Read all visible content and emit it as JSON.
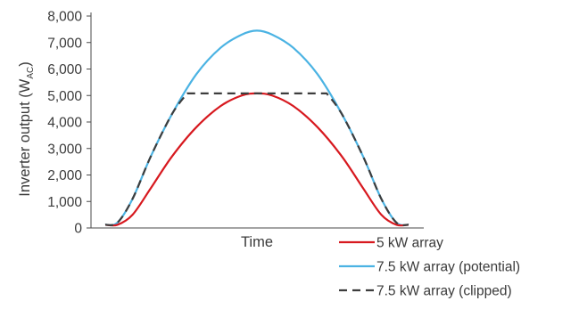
{
  "chart_data": {
    "type": "line",
    "title": "",
    "xlabel": "Time",
    "ylabel": "Inverter output (W",
    "ylabel_subscript": "AC",
    "ylabel_suffix": ")",
    "ylim": [
      0,
      8000
    ],
    "yticks": [
      "0",
      "1,000",
      "2,000",
      "3,000",
      "4,000",
      "5,000",
      "6,000",
      "7,000",
      "8,000"
    ],
    "grid": false,
    "legend_position": "bottom-right",
    "series": [
      {
        "name": "5 kW array",
        "color": "#d7191f",
        "style": "solid",
        "x": [
          0.0,
          0.04,
          0.09,
          0.15,
          0.22,
          0.3,
          0.38,
          0.45,
          0.5,
          0.55,
          0.62,
          0.7,
          0.78,
          0.85,
          0.91,
          0.96,
          1.0
        ],
        "values": [
          120,
          120,
          500,
          1500,
          2700,
          3800,
          4600,
          5000,
          5080,
          5000,
          4600,
          3800,
          2700,
          1500,
          500,
          120,
          120
        ]
      },
      {
        "name": "7.5 kW array (potential)",
        "color": "#4bb3e3",
        "style": "solid",
        "x": [
          0.0,
          0.04,
          0.09,
          0.15,
          0.22,
          0.3,
          0.38,
          0.45,
          0.5,
          0.55,
          0.62,
          0.7,
          0.78,
          0.85,
          0.91,
          0.96,
          1.0
        ],
        "values": [
          120,
          200,
          1100,
          2700,
          4300,
          5800,
          6800,
          7300,
          7450,
          7300,
          6800,
          5800,
          4300,
          2700,
          1100,
          200,
          120
        ]
      },
      {
        "name": "7.5 kW array (clipped)",
        "color": "#3d3d3d",
        "style": "dashed",
        "x": [
          0.0,
          0.04,
          0.09,
          0.15,
          0.22,
          0.27,
          0.5,
          0.73,
          0.78,
          0.85,
          0.91,
          0.96,
          1.0
        ],
        "values": [
          120,
          200,
          1100,
          2700,
          4300,
          5080,
          5080,
          5080,
          4300,
          2700,
          1100,
          200,
          120
        ]
      }
    ]
  }
}
